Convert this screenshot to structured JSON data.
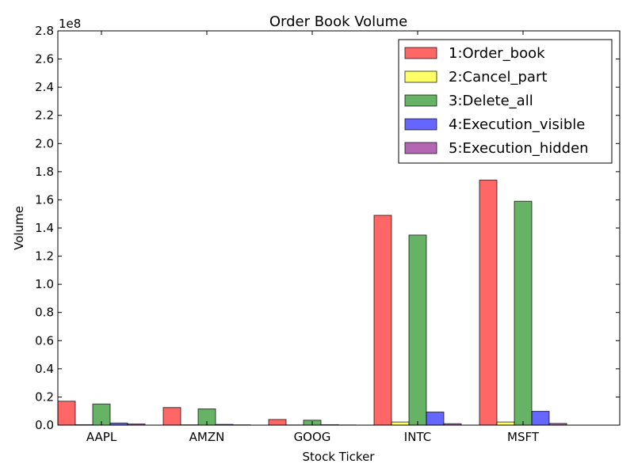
{
  "chart_data": {
    "type": "bar",
    "title": "Order Book Volume",
    "xlabel": "Stock Ticker",
    "ylabel": "Volume",
    "y_multiplier_label": "1e8",
    "categories": [
      "AAPL",
      "AMZN",
      "GOOG",
      "INTC",
      "MSFT"
    ],
    "ylim": [
      0,
      2.8
    ],
    "yticks": [
      "0.0",
      "0.2",
      "0.4",
      "0.6",
      "0.8",
      "1.0",
      "1.2",
      "1.4",
      "1.6",
      "1.8",
      "2.0",
      "2.2",
      "2.4",
      "2.6",
      "2.8"
    ],
    "legend_position": "top-right",
    "grid": false,
    "series": [
      {
        "name": "1:Order_book",
        "color": "#ff0000",
        "values": [
          0.17,
          0.125,
          0.04,
          1.49,
          1.74
        ]
      },
      {
        "name": "2:Cancel_part",
        "color": "#ffff00",
        "values": [
          0.003,
          0.002,
          0.001,
          0.022,
          0.022
        ]
      },
      {
        "name": "3:Delete_all",
        "color": "#008000",
        "values": [
          0.15,
          0.115,
          0.035,
          1.35,
          1.59
        ]
      },
      {
        "name": "4:Execution_visible",
        "color": "#0000ff",
        "values": [
          0.015,
          0.005,
          0.003,
          0.093,
          0.098
        ]
      },
      {
        "name": "5:Execution_hidden",
        "color": "#800080",
        "values": [
          0.008,
          0.002,
          0.001,
          0.01,
          0.012
        ]
      }
    ]
  }
}
